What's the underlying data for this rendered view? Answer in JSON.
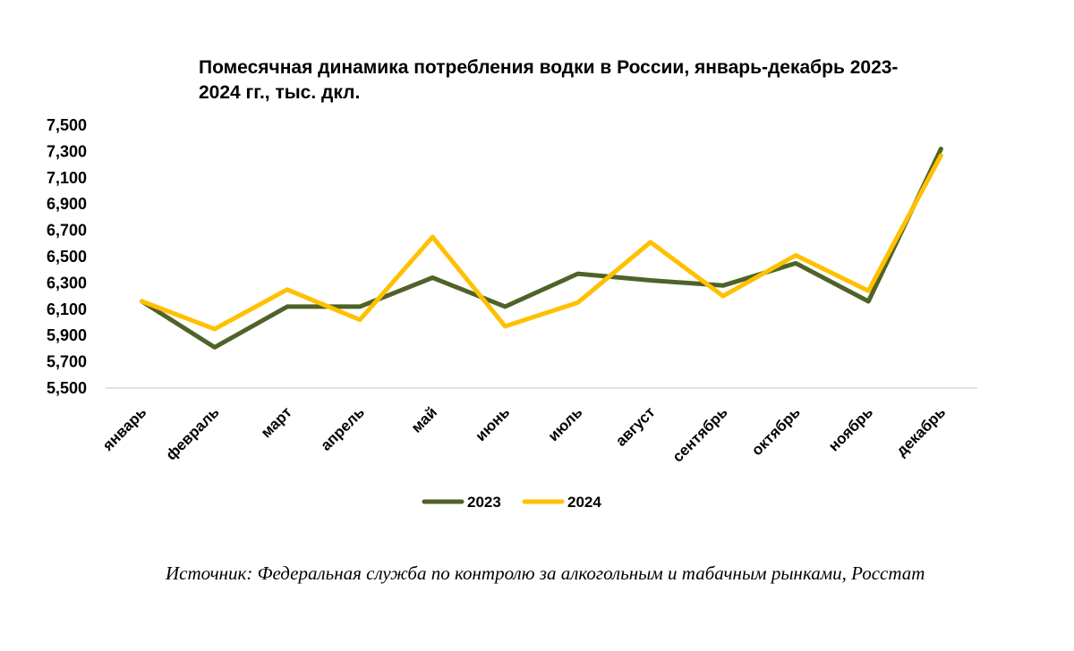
{
  "chart_data": {
    "type": "line",
    "title_lines": [
      "Помесячная динамика потребления водки в России, январь-декабрь 2023-",
      "2024 гг., тыс. дкл."
    ],
    "categories": [
      "январь",
      "февраль",
      "март",
      "апрель",
      "май",
      "июнь",
      "июль",
      "август",
      "сентябрь",
      "октябрь",
      "ноябрь",
      "декабрь"
    ],
    "series": [
      {
        "name": "2023",
        "color": "#4f6228",
        "values": [
          6160,
          5810,
          6120,
          6120,
          6340,
          6120,
          6370,
          6320,
          6280,
          6450,
          6160,
          7320
        ]
      },
      {
        "name": "2024",
        "color": "#ffc000",
        "values": [
          6160,
          5950,
          6250,
          6020,
          6650,
          5970,
          6150,
          6610,
          6200,
          6510,
          6240,
          7270
        ]
      }
    ],
    "ylim": [
      5500,
      7500
    ],
    "yticks": [
      "5,500",
      "5,700",
      "5,900",
      "6,100",
      "6,300",
      "6,500",
      "6,700",
      "6,900",
      "7,100",
      "7,300",
      "7,500"
    ],
    "legend": "bottom-center"
  },
  "source_text": "Источник: Федеральная служба по контролю за алкогольным и табачным рынками, Росстат"
}
